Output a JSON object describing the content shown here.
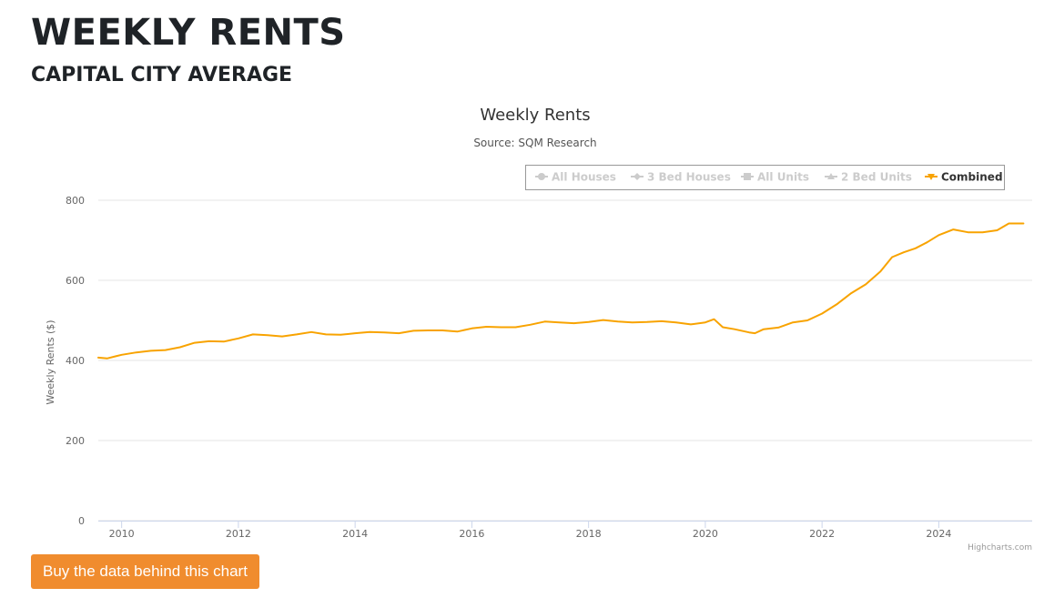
{
  "page": {
    "title": "WEEKLY RENTS",
    "subtitle": "CAPITAL CITY AVERAGE"
  },
  "buy_button": {
    "label": "Buy the data behind this chart"
  },
  "credits": "Highcharts.com",
  "colors": {
    "combined": "#f8a300",
    "legend_inactive": "#cccccc",
    "button": "#f08c2e",
    "grid": "#e6e6e6"
  },
  "chart_data": {
    "type": "line",
    "title": "Weekly Rents",
    "subtitle": "Source: SQM Research",
    "xlabel": "",
    "ylabel": "Weekly Rents ($)",
    "ylim": [
      0,
      800
    ],
    "xlim": [
      2009.6,
      2025.6
    ],
    "yticks": [
      "0",
      "200",
      "400",
      "600",
      "800"
    ],
    "xticks": [
      "2010",
      "2012",
      "2014",
      "2016",
      "2018",
      "2020",
      "2022",
      "2024"
    ],
    "grid": true,
    "legend_position": "top-right",
    "legend": [
      {
        "name": "All Houses",
        "active": false,
        "icon": "circle-marker"
      },
      {
        "name": "3 Bed Houses",
        "active": false,
        "icon": "diamond-marker"
      },
      {
        "name": "All Units",
        "active": false,
        "icon": "square-marker"
      },
      {
        "name": "2 Bed Units",
        "active": false,
        "icon": "triangle-marker"
      },
      {
        "name": "Combined",
        "active": true,
        "icon": "triangle-down-marker"
      }
    ],
    "series": [
      {
        "name": "Combined",
        "color": "#f8a300",
        "x": [
          2009.6,
          2009.75,
          2010.0,
          2010.25,
          2010.5,
          2010.75,
          2011.0,
          2011.25,
          2011.5,
          2011.75,
          2012.0,
          2012.25,
          2012.5,
          2012.75,
          2013.0,
          2013.25,
          2013.5,
          2013.75,
          2014.0,
          2014.25,
          2014.5,
          2014.75,
          2015.0,
          2015.25,
          2015.5,
          2015.75,
          2016.0,
          2016.25,
          2016.5,
          2016.75,
          2017.0,
          2017.25,
          2017.5,
          2017.75,
          2018.0,
          2018.25,
          2018.5,
          2018.75,
          2019.0,
          2019.25,
          2019.5,
          2019.75,
          2020.0,
          2020.15,
          2020.3,
          2020.5,
          2020.75,
          2020.85,
          2021.0,
          2021.25,
          2021.5,
          2021.75,
          2022.0,
          2022.25,
          2022.5,
          2022.75,
          2023.0,
          2023.2,
          2023.4,
          2023.6,
          2023.8,
          2024.0,
          2024.25,
          2024.5,
          2024.75,
          2025.0,
          2025.2,
          2025.45
        ],
        "values": [
          407,
          405,
          414,
          420,
          424,
          426,
          433,
          444,
          448,
          447,
          455,
          465,
          463,
          460,
          465,
          471,
          465,
          464,
          468,
          471,
          470,
          468,
          474,
          475,
          475,
          472,
          480,
          484,
          483,
          483,
          489,
          497,
          495,
          493,
          496,
          501,
          497,
          495,
          496,
          498,
          495,
          490,
          495,
          503,
          483,
          478,
          470,
          468,
          478,
          482,
          495,
          500,
          517,
          540,
          568,
          590,
          622,
          658,
          670,
          680,
          695,
          713,
          727,
          720,
          720,
          725,
          742,
          742
        ]
      }
    ]
  }
}
